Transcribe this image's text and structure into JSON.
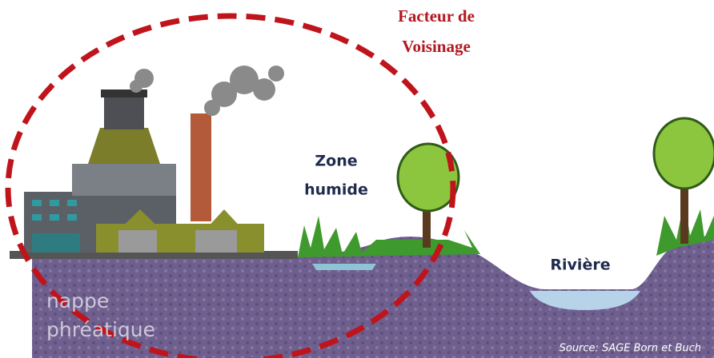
{
  "annotation": {
    "lines": [
      "Facteur de",
      "Voisinage"
    ]
  },
  "wetland": {
    "lines": [
      "Zone",
      "humide"
    ]
  },
  "river": {
    "label": "Rivière"
  },
  "aquifer": {
    "lines": [
      "nappe",
      "phréatique"
    ]
  },
  "source": "Source: SAGE Born et Buch"
}
